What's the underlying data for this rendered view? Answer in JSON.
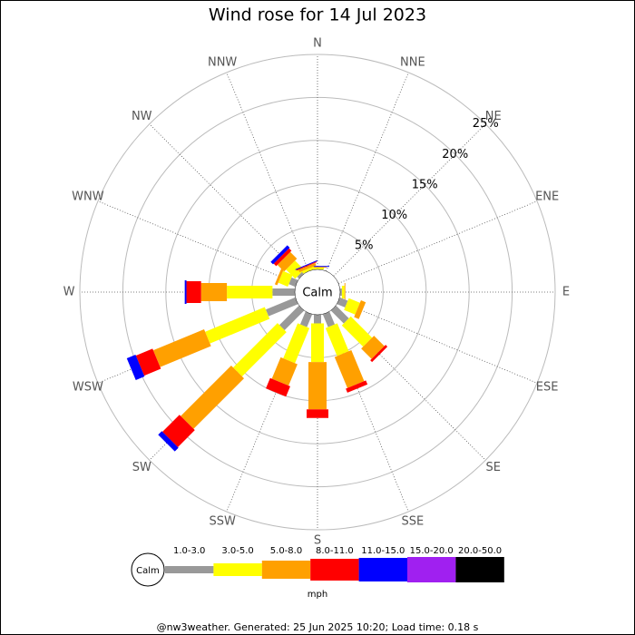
{
  "chart_data": {
    "type": "rose",
    "title": "Wind rose for 14 Jul 2023",
    "categories": [
      "N",
      "NNE",
      "NE",
      "ENE",
      "E",
      "ESE",
      "SE",
      "SSE",
      "S",
      "SSW",
      "SW",
      "WSW",
      "W",
      "WNW",
      "NW",
      "NNW"
    ],
    "rlim": [
      0,
      25
    ],
    "rticks": [
      {
        "value": 5,
        "label": "5%"
      },
      {
        "value": 10,
        "label": "10%"
      },
      {
        "value": 15,
        "label": "15%"
      },
      {
        "value": 20,
        "label": "20%"
      },
      {
        "value": 25,
        "label": "25%"
      }
    ],
    "calm_label": "Calm",
    "unit": "mph",
    "series": [
      {
        "name": "1.0-3.0",
        "color": "#999999",
        "values": [
          0,
          0,
          0,
          0,
          0.2,
          1,
          2.1,
          1.6,
          1,
          1.6,
          3.2,
          3.7,
          2.6,
          0.8,
          0.3,
          0
        ]
      },
      {
        "name": "3.0-5.0",
        "color": "#ffff00",
        "values": [
          0.2,
          0,
          0,
          0,
          0.3,
          1.4,
          3.5,
          3.5,
          4.5,
          4.4,
          7.3,
          7.5,
          5.3,
          1.2,
          1.5,
          0.3
        ]
      },
      {
        "name": "5.0-8.0",
        "color": "#ffa000",
        "values": [
          0.1,
          0,
          0,
          0,
          0.1,
          0.6,
          1.7,
          3.9,
          5.5,
          2.7,
          8.3,
          6.4,
          3,
          0.3,
          1.1,
          0.3
        ]
      },
      {
        "name": "8.0-11.0",
        "color": "#ff0000",
        "values": [
          0,
          0,
          0,
          0,
          0,
          0,
          0.3,
          0.5,
          1,
          1.3,
          2.8,
          2.1,
          1.7,
          0,
          0.4,
          0.1
        ]
      },
      {
        "name": "11.0-15.0",
        "color": "#0000ff",
        "values": [
          0.1,
          0,
          0,
          0,
          0,
          0,
          0,
          0,
          0,
          0,
          0.6,
          1.1,
          0.2,
          0,
          0.4,
          0.1
        ]
      },
      {
        "name": "15.0-20.0",
        "color": "#a020f0",
        "values": [
          0,
          0,
          0,
          0,
          0,
          0,
          0,
          0,
          0,
          0,
          0,
          0,
          0,
          0,
          0,
          0
        ]
      },
      {
        "name": "20.0-50.0",
        "color": "#000000",
        "values": [
          0,
          0,
          0,
          0,
          0,
          0,
          0,
          0,
          0,
          0,
          0,
          0,
          0,
          0,
          0,
          0
        ]
      }
    ],
    "footer": "@nw3weather. Generated: 25 Jun 2025 10:20; Load time: 0.18 s"
  }
}
